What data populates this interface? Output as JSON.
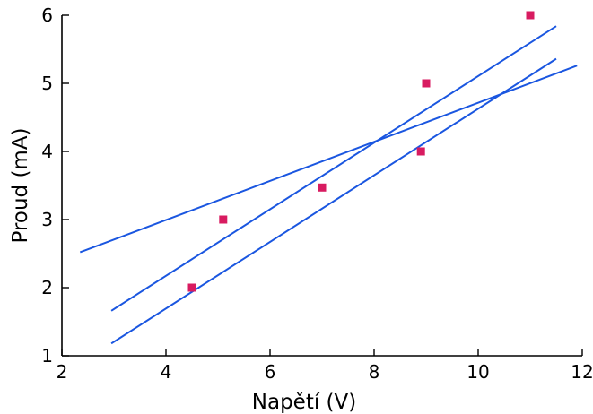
{
  "chart_data": {
    "type": "scatter",
    "xlabel": "Napětí (V)",
    "ylabel": "Proud (mA)",
    "xlim": [
      2,
      12
    ],
    "ylim": [
      1,
      6
    ],
    "xticks": [
      "2",
      "4",
      "6",
      "8",
      "10",
      "12"
    ],
    "yticks": [
      "1",
      "2",
      "3",
      "4",
      "5",
      "6"
    ],
    "grid": false,
    "legend": "none",
    "points": {
      "x": [
        4.5,
        5.1,
        7.0,
        8.9,
        9.0,
        11.0
      ],
      "y": [
        2.0,
        3.0,
        3.47,
        4.0,
        5.0,
        6.0
      ],
      "color": "#d81b60"
    },
    "lines": [
      {
        "x": [
          2.35,
          11.9
        ],
        "y": [
          2.52,
          5.26
        ],
        "color": "#1a56e0"
      },
      {
        "x": [
          2.95,
          11.5
        ],
        "y": [
          1.66,
          5.84
        ],
        "color": "#1a56e0"
      },
      {
        "x": [
          2.95,
          11.5
        ],
        "y": [
          1.18,
          5.36
        ],
        "color": "#1a56e0"
      }
    ]
  }
}
